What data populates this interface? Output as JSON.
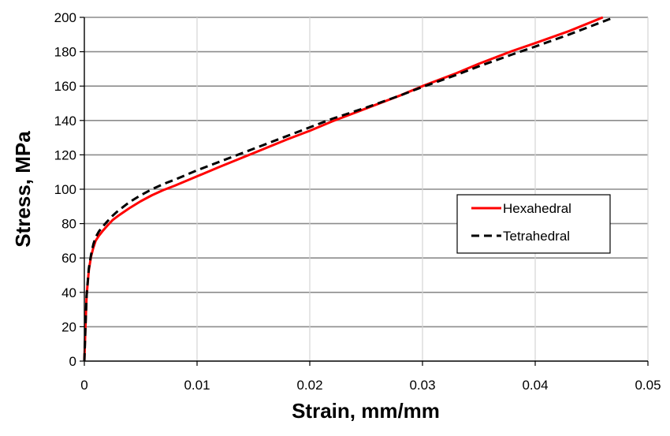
{
  "chart_data": {
    "type": "line",
    "xlabel": "Strain, mm/mm",
    "ylabel": "Stress, MPa",
    "xlim": [
      0,
      0.05
    ],
    "ylim": [
      0,
      200
    ],
    "xticks": [
      0,
      0.01,
      0.02,
      0.03,
      0.04,
      0.05
    ],
    "xtick_labels": [
      "0",
      "0.01",
      "0.02",
      "0.03",
      "0.04",
      "0.05"
    ],
    "yticks": [
      0,
      20,
      40,
      60,
      80,
      100,
      120,
      140,
      160,
      180,
      200
    ],
    "ytick_labels": [
      "0",
      "20",
      "40",
      "60",
      "80",
      "100",
      "120",
      "140",
      "160",
      "180",
      "200"
    ],
    "grid": true,
    "legend_position": "right-middle",
    "series": [
      {
        "name": "Hexahedral",
        "color": "#ff0000",
        "style": "solid",
        "x": [
          0,
          0.0001,
          0.0002,
          0.0004,
          0.0006,
          0.0008,
          0.001,
          0.0013,
          0.0016,
          0.002,
          0.0025,
          0.003,
          0.004,
          0.005,
          0.006,
          0.007,
          0.008,
          0.01,
          0.012,
          0.015,
          0.018,
          0.02,
          0.022,
          0.025,
          0.028,
          0.03,
          0.033,
          0.035,
          0.038,
          0.04,
          0.043,
          0.046
        ],
        "y": [
          0,
          20,
          38,
          53,
          61,
          66,
          70,
          73,
          75.5,
          78.5,
          82,
          84.5,
          89,
          93,
          96.5,
          99.5,
          102,
          107.5,
          113,
          121,
          129,
          134,
          139.5,
          147,
          154.5,
          160,
          167.5,
          173,
          180.5,
          185,
          192,
          200
        ]
      },
      {
        "name": "Tetrahedral",
        "color": "#000000",
        "style": "dashed",
        "x": [
          0,
          0.0001,
          0.0002,
          0.0004,
          0.0006,
          0.0008,
          0.001,
          0.0013,
          0.0016,
          0.002,
          0.0025,
          0.003,
          0.004,
          0.005,
          0.006,
          0.007,
          0.008,
          0.01,
          0.012,
          0.015,
          0.018,
          0.02,
          0.022,
          0.025,
          0.028,
          0.03,
          0.033,
          0.035,
          0.038,
          0.04,
          0.043,
          0.047
        ],
        "y": [
          0,
          20,
          38,
          54,
          62,
          68,
          72,
          75.5,
          78,
          81,
          84.5,
          87.5,
          92.5,
          96.5,
          100,
          103,
          105.5,
          111,
          116,
          123.5,
          131,
          136,
          141,
          147.5,
          154.5,
          159.5,
          166.5,
          171.5,
          178.5,
          183,
          190,
          200
        ]
      }
    ]
  }
}
